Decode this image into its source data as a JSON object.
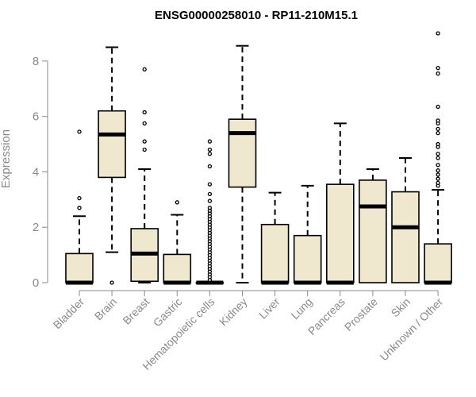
{
  "chart_data": {
    "type": "box",
    "title": "ENSG00000258010 - RP11-210M15.1",
    "xlabel": "",
    "ylabel": "Expression",
    "ylim": [
      0,
      9
    ],
    "yticks": [
      0,
      2,
      4,
      6,
      8
    ],
    "colors": {
      "box_fill": "#efe8cf",
      "stroke": "#000000",
      "axis": "#8a8a8a"
    },
    "categories": [
      "Bladder",
      "Brain",
      "Breast",
      "Gastric",
      "Hematopoietic cells",
      "Kidney",
      "Liver",
      "Lung",
      "Pancreas",
      "Prostate",
      "Skin",
      "Unknown / Other"
    ],
    "boxes": [
      {
        "category": "Bladder",
        "whisker_low": 0,
        "q1": 0,
        "median": 0,
        "q3": 1.05,
        "whisker_high": 2.4,
        "outliers": [
          2.7,
          3.05,
          5.45
        ]
      },
      {
        "category": "Brain",
        "whisker_low": 1.1,
        "q1": 3.8,
        "median": 5.35,
        "q3": 6.2,
        "whisker_high": 8.5,
        "outliers": [
          0
        ]
      },
      {
        "category": "Breast",
        "whisker_low": 0,
        "q1": 0.05,
        "median": 1.05,
        "q3": 1.95,
        "whisker_high": 4.1,
        "outliers": [
          4.8,
          5.1,
          5.75,
          6.15,
          7.7
        ]
      },
      {
        "category": "Gastric",
        "whisker_low": 0,
        "q1": 0,
        "median": 0,
        "q3": 1.02,
        "whisker_high": 2.45,
        "outliers": [
          2.9
        ]
      },
      {
        "category": "Hematopoietic cells",
        "whisker_low": 0,
        "q1": 0,
        "median": 0,
        "q3": 0,
        "whisker_high": 0,
        "outliers": [
          0.1,
          0.2,
          0.3,
          0.4,
          0.5,
          0.6,
          0.7,
          0.8,
          0.9,
          1.0,
          1.1,
          1.2,
          1.3,
          1.4,
          1.5,
          1.6,
          1.7,
          1.8,
          1.9,
          2.0,
          2.1,
          2.2,
          2.3,
          2.4,
          2.5,
          2.6,
          2.7,
          2.95,
          3.2,
          3.55,
          4.2,
          4.65,
          4.8,
          5.1
        ]
      },
      {
        "category": "Kidney",
        "whisker_low": 0,
        "q1": 3.45,
        "median": 5.4,
        "q3": 5.9,
        "whisker_high": 8.55,
        "outliers": []
      },
      {
        "category": "Liver",
        "whisker_low": 0,
        "q1": 0,
        "median": 0,
        "q3": 2.1,
        "whisker_high": 3.25,
        "outliers": []
      },
      {
        "category": "Lung",
        "whisker_low": 0,
        "q1": 0,
        "median": 0,
        "q3": 1.7,
        "whisker_high": 3.5,
        "outliers": []
      },
      {
        "category": "Pancreas",
        "whisker_low": 0,
        "q1": 0,
        "median": 0,
        "q3": 3.55,
        "whisker_high": 5.75,
        "outliers": []
      },
      {
        "category": "Prostate",
        "whisker_low": 0,
        "q1": 0,
        "median": 2.75,
        "q3": 3.7,
        "whisker_high": 4.1,
        "outliers": []
      },
      {
        "category": "Skin",
        "whisker_low": 0,
        "q1": 0,
        "median": 2.0,
        "q3": 3.28,
        "whisker_high": 4.5,
        "outliers": []
      },
      {
        "category": "Unknown / Other",
        "whisker_low": 0,
        "q1": 0,
        "median": 0,
        "q3": 1.4,
        "whisker_high": 3.35,
        "outliers": [
          3.5,
          3.6,
          3.75,
          3.9,
          4.05,
          4.25,
          4.5,
          4.65,
          4.9,
          5.0,
          5.4,
          5.55,
          5.75,
          5.85,
          6.35,
          7.55,
          7.75,
          9.0
        ]
      }
    ]
  }
}
